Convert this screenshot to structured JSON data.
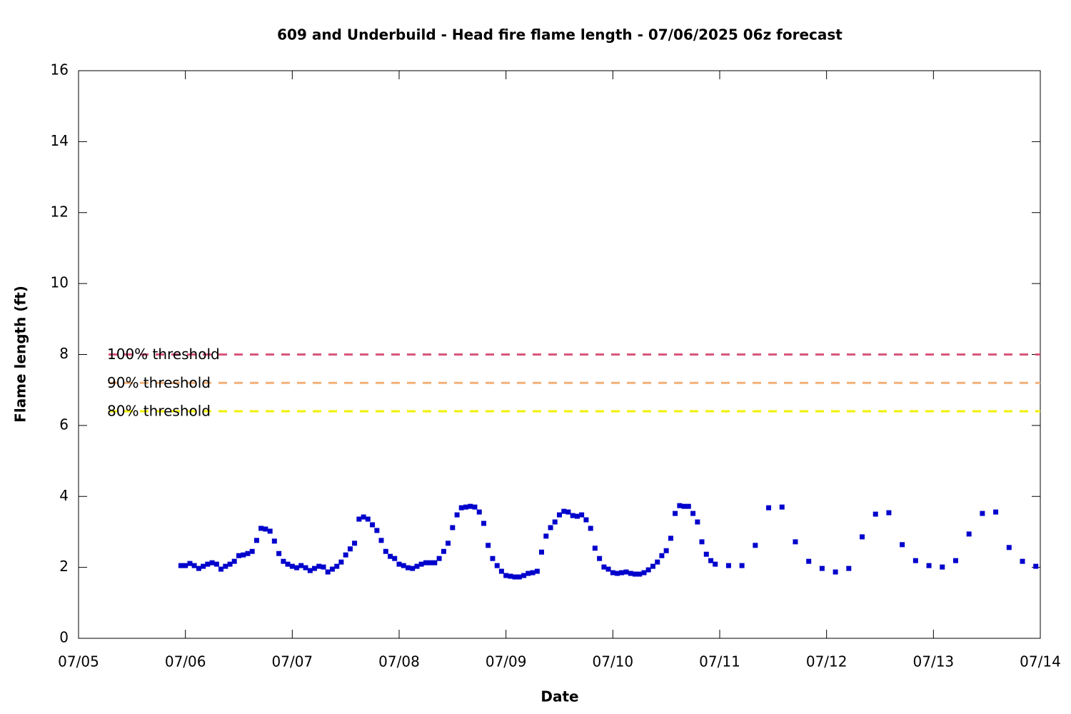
{
  "chart_data": {
    "type": "scatter",
    "title": "609 and Underbuild - Head fire flame length - 07/06/2025 06z forecast",
    "x_label": "Date",
    "y_label": "Flame length (ft)",
    "xlim": [
      5,
      14
    ],
    "xticks": [
      {
        "value": 5,
        "label": "07/05"
      },
      {
        "value": 6,
        "label": "07/06"
      },
      {
        "value": 7,
        "label": "07/07"
      },
      {
        "value": 8,
        "label": "07/08"
      },
      {
        "value": 9,
        "label": "07/09"
      },
      {
        "value": 10,
        "label": "07/10"
      },
      {
        "value": 11,
        "label": "07/11"
      },
      {
        "value": 12,
        "label": "07/12"
      },
      {
        "value": 13,
        "label": "07/13"
      },
      {
        "value": 14,
        "label": "07/14"
      }
    ],
    "ylim": [
      0,
      16
    ],
    "yticks": [
      0,
      2,
      4,
      6,
      8,
      10,
      12,
      14,
      16
    ],
    "thresholds": [
      {
        "name": "100% threshold",
        "value": 8,
        "color": "#d9577a"
      },
      {
        "name": "90% threshold",
        "value": 7.2,
        "color": "#f2b078"
      },
      {
        "name": "80% threshold",
        "value": 6.4,
        "color": "#f2f000"
      }
    ],
    "series": [
      {
        "color": "#0000cc",
        "x": [
          5.958,
          6,
          6.042,
          6.083,
          6.125,
          6.167,
          6.208,
          6.25,
          6.292,
          6.333,
          6.375,
          6.417,
          6.458,
          6.5,
          6.542,
          6.583,
          6.625,
          6.667,
          6.708,
          6.75,
          6.792,
          6.833,
          6.875,
          6.917,
          6.958,
          7,
          7.042,
          7.083,
          7.125,
          7.167,
          7.208,
          7.25,
          7.292,
          7.333,
          7.375,
          7.417,
          7.458,
          7.5,
          7.542,
          7.583,
          7.625,
          7.667,
          7.708,
          7.75,
          7.792,
          7.833,
          7.875,
          7.917,
          7.958,
          8,
          8.042,
          8.083,
          8.125,
          8.167,
          8.208,
          8.25,
          8.292,
          8.333,
          8.375,
          8.417,
          8.458,
          8.5,
          8.542,
          8.583,
          8.625,
          8.667,
          8.708,
          8.75,
          8.792,
          8.833,
          8.875,
          8.917,
          8.958,
          9,
          9.042,
          9.083,
          9.125,
          9.167,
          9.208,
          9.25,
          9.292,
          9.333,
          9.375,
          9.417,
          9.458,
          9.5,
          9.542,
          9.583,
          9.625,
          9.667,
          9.708,
          9.75,
          9.792,
          9.833,
          9.875,
          9.917,
          9.958,
          10,
          10.042,
          10.083,
          10.125,
          10.167,
          10.208,
          10.25,
          10.292,
          10.333,
          10.375,
          10.417,
          10.458,
          10.5,
          10.542,
          10.583,
          10.625,
          10.667,
          10.708,
          10.75,
          10.792,
          10.833,
          10.875,
          10.917,
          10.958,
          11.083,
          11.208,
          11.333,
          11.458,
          11.583,
          11.708,
          11.833,
          11.958,
          12.083,
          12.208,
          12.333,
          12.458,
          12.583,
          12.708,
          12.833,
          12.958,
          13.083,
          13.208,
          13.333,
          13.458,
          13.583,
          13.708,
          13.833,
          13.958
        ],
        "values": [
          2.05,
          2.05,
          2.11,
          2.05,
          1.97,
          2.03,
          2.09,
          2.13,
          2.09,
          1.95,
          2.03,
          2.09,
          2.17,
          2.33,
          2.35,
          2.39,
          2.45,
          2.76,
          3.1,
          3.08,
          3.02,
          2.74,
          2.39,
          2.17,
          2.09,
          2.03,
          1.99,
          2.05,
          1.99,
          1.91,
          1.97,
          2.03,
          2.01,
          1.87,
          1.95,
          2.03,
          2.15,
          2.35,
          2.52,
          2.68,
          3.36,
          3.42,
          3.36,
          3.2,
          3.04,
          2.76,
          2.45,
          2.31,
          2.25,
          2.09,
          2.05,
          1.99,
          1.97,
          2.03,
          2.09,
          2.13,
          2.13,
          2.13,
          2.25,
          2.45,
          2.68,
          3.12,
          3.48,
          3.68,
          3.7,
          3.72,
          3.7,
          3.56,
          3.24,
          2.62,
          2.25,
          2.05,
          1.89,
          1.77,
          1.75,
          1.73,
          1.73,
          1.77,
          1.83,
          1.85,
          1.89,
          2.43,
          2.88,
          3.12,
          3.28,
          3.48,
          3.58,
          3.56,
          3.46,
          3.44,
          3.48,
          3.34,
          3.1,
          2.54,
          2.25,
          2.01,
          1.95,
          1.85,
          1.83,
          1.85,
          1.87,
          1.83,
          1.81,
          1.81,
          1.85,
          1.93,
          2.03,
          2.15,
          2.33,
          2.47,
          2.82,
          3.52,
          3.74,
          3.72,
          3.72,
          3.52,
          3.28,
          2.72,
          2.37,
          2.19,
          2.09,
          2.05,
          2.05,
          2.62,
          3.68,
          3.7,
          2.72,
          2.17,
          1.97,
          1.87,
          1.97,
          2.86,
          3.5,
          3.54,
          2.64,
          2.19,
          2.05,
          2.01,
          2.19,
          2.94,
          3.52,
          3.56,
          2.56,
          2.17,
          2.03
        ]
      }
    ]
  }
}
